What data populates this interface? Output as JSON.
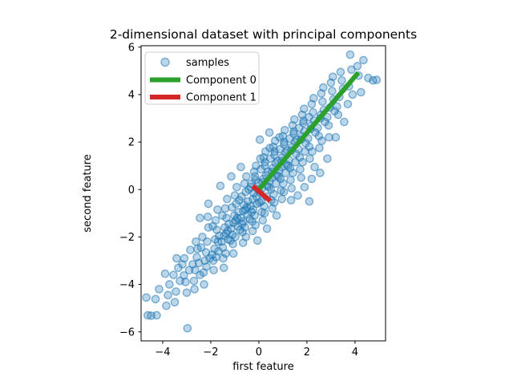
{
  "chart_data": {
    "type": "scatter",
    "title": "2-dimensional dataset with principal components",
    "xlabel": "first feature",
    "ylabel": "second feature",
    "xlim": [
      -4.9,
      5.27
    ],
    "ylim": [
      -6.38,
      6.06
    ],
    "xticks": [
      -4,
      -2,
      0,
      2,
      4
    ],
    "yticks": [
      -6,
      -4,
      -2,
      0,
      2,
      4,
      6
    ],
    "grid": false,
    "legend_position": "upper left",
    "legend": {
      "items": [
        {
          "label": "samples"
        },
        {
          "label": "Component 0"
        },
        {
          "label": "Component 1"
        }
      ]
    },
    "series": {
      "samples": {
        "label": "samples",
        "type": "scatter",
        "color": "#1f77b4",
        "fill_alpha": 0.3,
        "edge_alpha": 0.55,
        "marker": "circle",
        "marker_radius": 4.6,
        "points": [
          [
            -4.62,
            -5.3
          ],
          [
            -4.48,
            -5.32
          ],
          [
            -4.68,
            -4.55
          ],
          [
            -4.25,
            -5.3
          ],
          [
            -4.15,
            -4.2
          ],
          [
            -4.3,
            -4.62
          ],
          [
            -3.85,
            -4.9
          ],
          [
            -3.72,
            -4.0
          ],
          [
            -3.9,
            -3.55
          ],
          [
            -3.78,
            -4.45
          ],
          [
            -3.45,
            -4.3
          ],
          [
            -3.35,
            -3.3
          ],
          [
            -3.5,
            -4.75
          ],
          [
            -3.28,
            -3.85
          ],
          [
            -3.42,
            -2.9
          ],
          [
            -3.55,
            -3.6
          ],
          [
            -3.05,
            -3.9
          ],
          [
            -2.97,
            -5.85
          ],
          [
            -3.1,
            -2.9
          ],
          [
            -2.9,
            -3.4
          ],
          [
            -3.18,
            -3.15
          ],
          [
            -2.85,
            -2.55
          ],
          [
            -3.0,
            -4.35
          ],
          [
            -3.12,
            -3.62
          ],
          [
            -2.65,
            -3.4
          ],
          [
            -2.55,
            -2.5
          ],
          [
            -2.7,
            -3.85
          ],
          [
            -2.5,
            -3.1
          ],
          [
            -2.62,
            -2.2
          ],
          [
            -2.75,
            -3.15
          ],
          [
            -2.45,
            -3.6
          ],
          [
            -2.68,
            -4.2
          ],
          [
            -2.58,
            -2.85
          ],
          [
            -2.25,
            -3.0
          ],
          [
            -2.15,
            -2.2
          ],
          [
            -2.3,
            -3.5
          ],
          [
            -2.1,
            -1.6
          ],
          [
            -2.2,
            -2.65
          ],
          [
            -2.35,
            -2.0
          ],
          [
            -2.05,
            -2.9
          ],
          [
            -2.28,
            -4.0
          ],
          [
            -2.18,
            -3.25
          ],
          [
            -2.4,
            -2.45
          ],
          [
            -2.12,
            -1.15
          ],
          [
            -1.85,
            -2.5
          ],
          [
            -1.75,
            -1.7
          ],
          [
            -1.9,
            -3.0
          ],
          [
            -1.7,
            -2.2
          ],
          [
            -1.8,
            -1.3
          ],
          [
            -1.95,
            -2.75
          ],
          [
            -1.65,
            -1.95
          ],
          [
            -1.88,
            -3.4
          ],
          [
            -1.72,
            -0.85
          ],
          [
            -1.82,
            -2.1
          ],
          [
            -1.78,
            -2.85
          ],
          [
            -1.92,
            -1.55
          ],
          [
            -1.68,
            -2.6
          ],
          [
            -1.45,
            -1.95
          ],
          [
            -1.35,
            -1.2
          ],
          [
            -1.5,
            -2.45
          ],
          [
            -1.3,
            -1.75
          ],
          [
            -1.4,
            -0.8
          ],
          [
            -1.55,
            -2.2
          ],
          [
            -1.25,
            -1.45
          ],
          [
            -1.48,
            -2.9
          ],
          [
            -1.32,
            -0.4
          ],
          [
            -1.42,
            -1.6
          ],
          [
            -1.38,
            -2.7
          ],
          [
            -1.52,
            -1.1
          ],
          [
            -1.28,
            -2.1
          ],
          [
            -1.46,
            -3.3
          ],
          [
            -1.36,
            -1.85
          ],
          [
            -1.05,
            -1.4
          ],
          [
            -0.95,
            -0.6
          ],
          [
            -1.1,
            -1.9
          ],
          [
            -0.9,
            -1.2
          ],
          [
            -1.0,
            -0.25
          ],
          [
            -1.15,
            -1.65
          ],
          [
            -0.85,
            -0.95
          ],
          [
            -1.08,
            -2.3
          ],
          [
            -0.92,
            0.1
          ],
          [
            -1.02,
            -1.1
          ],
          [
            -0.98,
            -2.0
          ],
          [
            -1.12,
            -0.75
          ],
          [
            -0.88,
            -1.55
          ],
          [
            -1.06,
            -2.7
          ],
          [
            -0.96,
            -1.3
          ],
          [
            -1.18,
            -2.15
          ],
          [
            -0.82,
            -0.45
          ],
          [
            -0.65,
            -0.9
          ],
          [
            -0.55,
            -0.1
          ],
          [
            -0.7,
            -1.45
          ],
          [
            -0.5,
            -0.75
          ],
          [
            -0.6,
            0.25
          ],
          [
            -0.75,
            -1.2
          ],
          [
            -0.45,
            -0.5
          ],
          [
            -0.68,
            -1.8
          ],
          [
            -0.52,
            0.55
          ],
          [
            -0.62,
            -0.65
          ],
          [
            -0.58,
            -1.6
          ],
          [
            -0.72,
            -0.3
          ],
          [
            -0.48,
            -1.05
          ],
          [
            -0.66,
            -2.25
          ],
          [
            -0.56,
            -0.85
          ],
          [
            -0.78,
            -1.7
          ],
          [
            -0.42,
            0.0
          ],
          [
            -0.64,
            -1.35
          ],
          [
            -0.54,
            -2.0
          ],
          [
            -0.25,
            -0.4
          ],
          [
            -0.15,
            0.4
          ],
          [
            -0.3,
            -0.95
          ],
          [
            -0.1,
            -0.3
          ],
          [
            -0.2,
            0.75
          ],
          [
            -0.35,
            -0.7
          ],
          [
            -0.05,
            0.0
          ],
          [
            -0.28,
            -1.35
          ],
          [
            -0.12,
            1.0
          ],
          [
            -0.22,
            -0.15
          ],
          [
            -0.18,
            -1.1
          ],
          [
            -0.32,
            0.25
          ],
          [
            -0.08,
            -0.6
          ],
          [
            -0.26,
            -1.75
          ],
          [
            -0.16,
            0.55
          ],
          [
            -0.38,
            -1.25
          ],
          [
            -0.02,
            0.3
          ],
          [
            -0.24,
            -0.85
          ],
          [
            -0.14,
            -1.5
          ],
          [
            -0.34,
            0.1
          ],
          [
            -0.06,
            -2.15
          ],
          [
            0.15,
            0.3
          ],
          [
            0.25,
            1.0
          ],
          [
            0.1,
            -0.5
          ],
          [
            0.3,
            0.6
          ],
          [
            0.2,
            1.35
          ],
          [
            0.05,
            -0.15
          ],
          [
            0.35,
            0.15
          ],
          [
            0.12,
            -0.95
          ],
          [
            0.28,
            1.6
          ],
          [
            0.18,
            0.45
          ],
          [
            0.22,
            -0.7
          ],
          [
            0.08,
            0.85
          ],
          [
            0.32,
            -0.3
          ],
          [
            0.16,
            -1.3
          ],
          [
            0.26,
            1.15
          ],
          [
            0.02,
            -0.55
          ],
          [
            0.38,
            0.75
          ],
          [
            0.14,
            0.05
          ],
          [
            0.24,
            -1.0
          ],
          [
            0.06,
            1.3
          ],
          [
            0.34,
            -1.65
          ],
          [
            0.04,
            2.1
          ],
          [
            0.55,
            0.75
          ],
          [
            0.65,
            1.45
          ],
          [
            0.5,
            0.0
          ],
          [
            0.7,
            1.1
          ],
          [
            0.6,
            1.8
          ],
          [
            0.45,
            0.35
          ],
          [
            0.75,
            0.6
          ],
          [
            0.52,
            -0.45
          ],
          [
            0.68,
            2.05
          ],
          [
            0.58,
            0.9
          ],
          [
            0.62,
            -0.2
          ],
          [
            0.48,
            1.3
          ],
          [
            0.72,
            0.25
          ],
          [
            0.56,
            -0.8
          ],
          [
            0.66,
            1.6
          ],
          [
            0.42,
            0.1
          ],
          [
            0.78,
            1.2
          ],
          [
            0.54,
            0.5
          ],
          [
            0.64,
            -0.55
          ],
          [
            0.46,
            1.75
          ],
          [
            0.74,
            -1.1
          ],
          [
            0.44,
            2.4
          ],
          [
            0.95,
            1.2
          ],
          [
            1.05,
            1.9
          ],
          [
            0.9,
            0.45
          ],
          [
            1.1,
            1.55
          ],
          [
            1.0,
            2.25
          ],
          [
            0.85,
            0.8
          ],
          [
            1.15,
            1.05
          ],
          [
            0.92,
            -0.05
          ],
          [
            1.08,
            2.5
          ],
          [
            0.98,
            1.35
          ],
          [
            1.02,
            0.25
          ],
          [
            0.88,
            1.7
          ],
          [
            1.12,
            0.7
          ],
          [
            0.96,
            -0.4
          ],
          [
            1.06,
            2.0
          ],
          [
            0.82,
            0.55
          ],
          [
            1.18,
            1.65
          ],
          [
            0.94,
            0.95
          ],
          [
            1.04,
            -0.1
          ],
          [
            0.86,
            2.2
          ],
          [
            1.35,
            1.65
          ],
          [
            1.45,
            2.35
          ],
          [
            1.3,
            0.9
          ],
          [
            1.5,
            2.0
          ],
          [
            1.4,
            2.7
          ],
          [
            1.25,
            1.25
          ],
          [
            1.55,
            1.5
          ],
          [
            1.32,
            0.4
          ],
          [
            1.48,
            2.95
          ],
          [
            1.38,
            1.8
          ],
          [
            1.42,
            0.7
          ],
          [
            1.28,
            2.15
          ],
          [
            1.52,
            1.15
          ],
          [
            1.36,
            0.05
          ],
          [
            1.46,
            2.45
          ],
          [
            1.22,
            1.0
          ],
          [
            1.58,
            2.1
          ],
          [
            1.34,
            -0.45
          ],
          [
            1.75,
            2.1
          ],
          [
            1.85,
            2.8
          ],
          [
            1.7,
            1.35
          ],
          [
            1.9,
            2.45
          ],
          [
            1.8,
            3.15
          ],
          [
            1.65,
            1.7
          ],
          [
            1.95,
            1.95
          ],
          [
            1.72,
            0.85
          ],
          [
            1.88,
            3.4
          ],
          [
            1.78,
            2.25
          ],
          [
            1.82,
            1.15
          ],
          [
            1.68,
            2.6
          ],
          [
            1.92,
            1.6
          ],
          [
            1.76,
            0.5
          ],
          [
            1.86,
            2.9
          ],
          [
            2.15,
            2.55
          ],
          [
            2.25,
            3.25
          ],
          [
            2.1,
            1.8
          ],
          [
            2.3,
            2.9
          ],
          [
            2.2,
            3.6
          ],
          [
            2.05,
            2.15
          ],
          [
            2.35,
            2.4
          ],
          [
            2.12,
            1.3
          ],
          [
            2.28,
            3.85
          ],
          [
            2.18,
            2.7
          ],
          [
            2.22,
            1.6
          ],
          [
            2.08,
            3.05
          ],
          [
            2.32,
            0.95
          ],
          [
            2.55,
            3.0
          ],
          [
            2.65,
            3.7
          ],
          [
            2.5,
            2.25
          ],
          [
            2.7,
            3.35
          ],
          [
            2.6,
            4.05
          ],
          [
            2.45,
            2.6
          ],
          [
            2.75,
            2.85
          ],
          [
            2.52,
            1.75
          ],
          [
            2.68,
            4.3
          ],
          [
            2.58,
            3.15
          ],
          [
            2.62,
            2.05
          ],
          [
            2.95,
            3.45
          ],
          [
            3.05,
            4.15
          ],
          [
            2.9,
            2.7
          ],
          [
            3.1,
            3.8
          ],
          [
            3.0,
            4.5
          ],
          [
            2.85,
            3.05
          ],
          [
            3.15,
            3.3
          ],
          [
            2.92,
            2.2
          ],
          [
            3.08,
            4.75
          ],
          [
            3.35,
            3.9
          ],
          [
            3.45,
            4.6
          ],
          [
            3.3,
            3.15
          ],
          [
            3.5,
            4.25
          ],
          [
            3.4,
            4.95
          ],
          [
            3.25,
            3.5
          ],
          [
            3.55,
            2.85
          ],
          [
            3.75,
            4.35
          ],
          [
            3.85,
            5.05
          ],
          [
            3.7,
            3.6
          ],
          [
            3.8,
            5.68
          ],
          [
            3.9,
            4.0
          ],
          [
            4.15,
            4.8
          ],
          [
            4.25,
            4.1
          ],
          [
            4.1,
            5.2
          ],
          [
            4.35,
            5.45
          ],
          [
            4.55,
            4.7
          ],
          [
            4.75,
            4.6
          ],
          [
            4.9,
            4.62
          ],
          [
            1.9,
            0.1
          ],
          [
            2.2,
            0.45
          ],
          [
            2.55,
            0.7
          ],
          [
            1.62,
            -0.25
          ],
          [
            2.1,
            -0.5
          ],
          [
            2.85,
            1.3
          ],
          [
            3.2,
            2.2
          ],
          [
            -1.6,
            0.15
          ],
          [
            -2.1,
            -0.6
          ],
          [
            -1.15,
            0.55
          ],
          [
            -0.75,
            0.95
          ],
          [
            -2.45,
            -1.2
          ]
        ]
      },
      "components": [
        {
          "label": "Component 0",
          "type": "line",
          "color": "#2ca02c",
          "linewidth": 6,
          "from": [
            0.0,
            0.0
          ],
          "to": [
            4.07,
            4.85
          ]
        },
        {
          "label": "Component 1",
          "type": "line",
          "color": "#d62728",
          "linewidth": 6,
          "from": [
            -0.18,
            0.08
          ],
          "to": [
            0.4,
            -0.42
          ]
        }
      ]
    },
    "axis_color": "#000000",
    "legend_border_color": "#cccccc"
  }
}
